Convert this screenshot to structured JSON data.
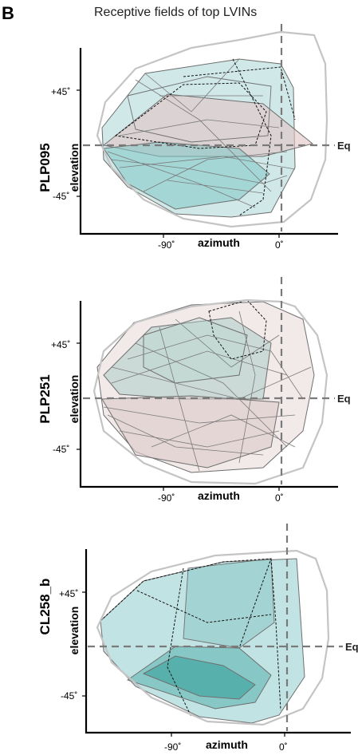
{
  "figure": {
    "panel_letter": "B",
    "title": "Receptive fields of top LVINs",
    "equator_label": "Eq",
    "x_axis_label": "azimuth",
    "y_axis_label": "elevation",
    "x_ticks": [
      "-90˚",
      "0˚"
    ],
    "y_ticks": [
      "+45˚",
      "-45˚"
    ]
  },
  "panels": [
    {
      "name": "PLP095",
      "fill_colors": [
        "#7fc6c6",
        "#e2c4c4",
        "#a9d5d5"
      ],
      "outline_color": "#c4c4c4",
      "line_color": "#6f6f6f"
    },
    {
      "name": "PLP251",
      "fill_colors": [
        "#dcc9c9",
        "#9ec7c0",
        "#efe3e3"
      ],
      "outline_color": "#c4c4c4",
      "line_color": "#6f6f6f"
    },
    {
      "name": "CL258_b",
      "fill_colors": [
        "#8fcccc",
        "#5fb6b3",
        "#3fa3a0"
      ],
      "outline_color": "#c4c4c4",
      "line_color": "#6f6f6f"
    }
  ]
}
